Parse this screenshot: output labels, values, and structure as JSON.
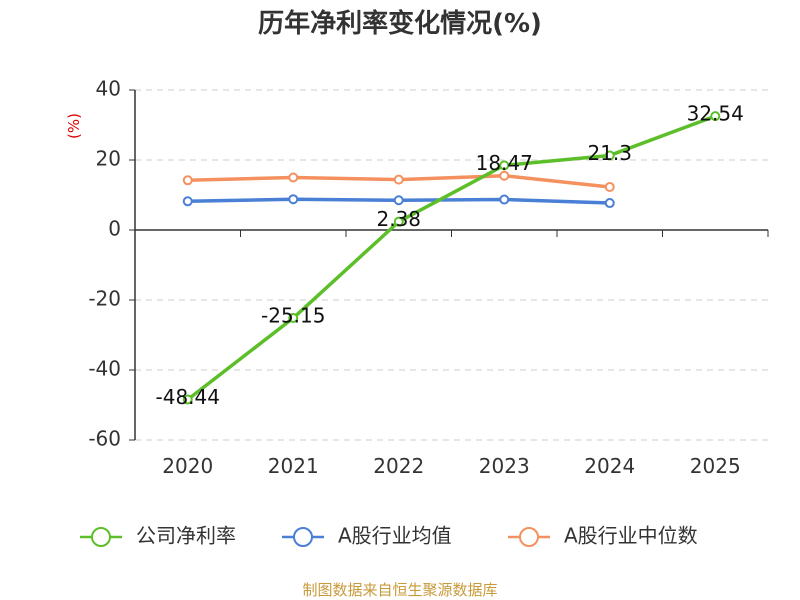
{
  "chart_data": {
    "type": "line",
    "title": "历年净利率变化情况(%)",
    "ylabel": "(%)",
    "xlabel": "",
    "categories": [
      "2020",
      "2021",
      "2022",
      "2023",
      "2024",
      "2025"
    ],
    "ylim": [
      -60,
      40
    ],
    "yticks": [
      40,
      20,
      0,
      -20,
      -40,
      -60
    ],
    "grid": true,
    "legend_position": "bottom",
    "series": [
      {
        "name": "公司净利率",
        "color": "#5cbf2a",
        "values": [
          -48.44,
          -25.15,
          2.38,
          18.47,
          21.3,
          32.54
        ],
        "labels": [
          "-48.44",
          "-25.15",
          "2.38",
          "18.47",
          "21.3",
          "32.54"
        ]
      },
      {
        "name": "A股行业均值",
        "color": "#4a7fd6",
        "values": [
          8.2,
          8.8,
          8.5,
          8.7,
          7.7,
          null
        ]
      },
      {
        "name": "A股行业中位数",
        "color": "#f4915f",
        "values": [
          14.2,
          15.0,
          14.4,
          15.5,
          12.3,
          null
        ]
      }
    ],
    "source": "制图数据来自恒生聚源数据库"
  }
}
